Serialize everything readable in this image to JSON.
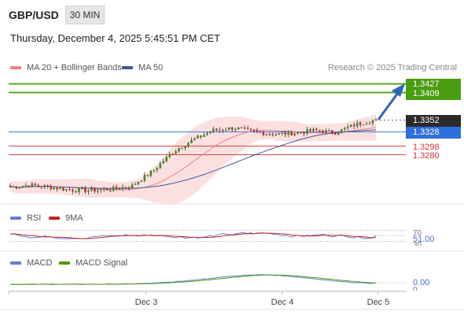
{
  "header": {
    "symbol": "GBP/USD",
    "timeframe": "30 MIN",
    "datetime": "Thursday, December 4, 2025 5:45:51 PM CET"
  },
  "legend": {
    "ma20_label": "MA 20 + Bollinger Bands",
    "ma50_label": "MA 50",
    "credit": "Research © 2025 Trading Central"
  },
  "colors": {
    "ma20": "#f08080",
    "ma50": "#3c5a96",
    "bands": "#fbd6d6",
    "target": "#4a9d0f",
    "pivot": "#2f6fdc",
    "support": "#d83232",
    "rsi": "#5f7fd6",
    "rsi_ma": "#cc2020",
    "macd": "#5f7fd6",
    "macd_signal": "#4a9d0f",
    "last_price": "#2b2b2b",
    "candle_up": "#3c8c22",
    "candle_down": "#c82828"
  },
  "price_levels": {
    "targets": [
      "1.3427",
      "1.3409"
    ],
    "last_price": "1.3352",
    "pivot": "1.3328",
    "supports": [
      "1.3298",
      "1.3280"
    ]
  },
  "rsi_panel": {
    "label": "RSI",
    "ma_label": "9MA",
    "level_high": "70",
    "level_low": "30",
    "current": "51.00"
  },
  "macd_panel": {
    "label": "MACD",
    "signal_label": "MACD Signal",
    "zero": "0",
    "current": "0.00"
  },
  "x_axis": {
    "ticks": [
      "Dec 3",
      "Dec 4",
      "Dec 5"
    ]
  },
  "chart_data": [
    {
      "type": "candlestick",
      "title": "GBP/USD 30 MIN",
      "x_ticks": [
        "Dec 3",
        "Dec 4",
        "Dec 5"
      ],
      "series": [
        {
          "name": "MA 20 + Bollinger Bands"
        },
        {
          "name": "MA 50"
        }
      ],
      "close_path": [
        1.3212,
        1.3216,
        1.3212,
        1.3206,
        1.3205,
        1.3208,
        1.3215,
        1.3245,
        1.3285,
        1.331,
        1.333,
        1.3335,
        1.3327,
        1.3322,
        1.3324,
        1.333,
        1.3325,
        1.3342,
        1.3352
      ],
      "horizontal_levels": [
        {
          "label": "1.3427",
          "value": 1.3427,
          "role": "resistance target"
        },
        {
          "label": "1.3409",
          "value": 1.3409,
          "role": "resistance target"
        },
        {
          "label": "1.3352",
          "value": 1.3352,
          "role": "last price"
        },
        {
          "label": "1.3328",
          "value": 1.3328,
          "role": "pivot"
        },
        {
          "label": "1.3298",
          "value": 1.3298,
          "role": "support"
        },
        {
          "label": "1.3280",
          "value": 1.328,
          "role": "support"
        }
      ]
    },
    {
      "type": "line",
      "title": "RSI",
      "series": [
        {
          "name": "RSI"
        },
        {
          "name": "9MA"
        }
      ],
      "reference_levels": [
        70,
        30
      ],
      "last_value": 51.0
    },
    {
      "type": "line",
      "title": "MACD",
      "series": [
        {
          "name": "MACD"
        },
        {
          "name": "MACD Signal"
        }
      ],
      "reference_levels": [
        0
      ],
      "last_value": 0.0
    }
  ]
}
